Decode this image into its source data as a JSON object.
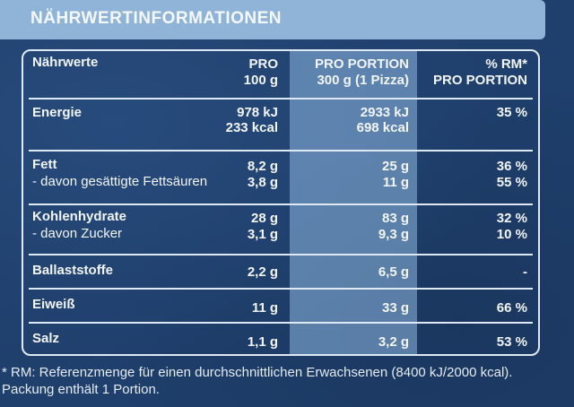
{
  "title": "NÄHRWERTINFORMATIONEN",
  "header": {
    "label": "Nährwerte",
    "per100_l1": "PRO",
    "per100_l2": "100 g",
    "portion_l1": "PRO PORTION",
    "portion_l2": "300 g (1 Pizza)",
    "rm_l1": "% RM*",
    "rm_l2": "PRO PORTION"
  },
  "rows": {
    "energie": {
      "label": "Energie",
      "per100_1": "978 kJ",
      "per100_2": "233 kcal",
      "portion_1": "2933 kJ",
      "portion_2": "698 kcal",
      "rm": "35 %"
    },
    "fett": {
      "label": "Fett",
      "per100": "8,2 g",
      "portion": "25 g",
      "rm": "36 %",
      "sub_label": "- davon gesättigte Fettsäuren",
      "sub_per100": "3,8 g",
      "sub_portion": "11 g",
      "sub_rm": "55 %"
    },
    "kohlenhydrate": {
      "label": "Kohlenhydrate",
      "per100": "28 g",
      "portion": "83 g",
      "rm": "32 %",
      "sub_label": "- davon Zucker",
      "sub_per100": "3,1 g",
      "sub_portion": "9,3 g",
      "sub_rm": "10 %"
    },
    "ballaststoffe": {
      "label": "Ballaststoffe",
      "per100": "2,2 g",
      "portion": "6,5 g",
      "rm": "-"
    },
    "eiweiss": {
      "label": "Eiweiß",
      "per100": "11 g",
      "portion": "33 g",
      "rm": "66 %"
    },
    "salz": {
      "label": "Salz",
      "per100": "1,1 g",
      "portion": "3,2 g",
      "rm": "53 %"
    }
  },
  "footnote": {
    "line1": "* RM: Referenzmenge für einen durchschnittlichen Erwachsenen (8400 kJ/2000 kcal).",
    "line2": "Packung enthält 1 Portion."
  }
}
